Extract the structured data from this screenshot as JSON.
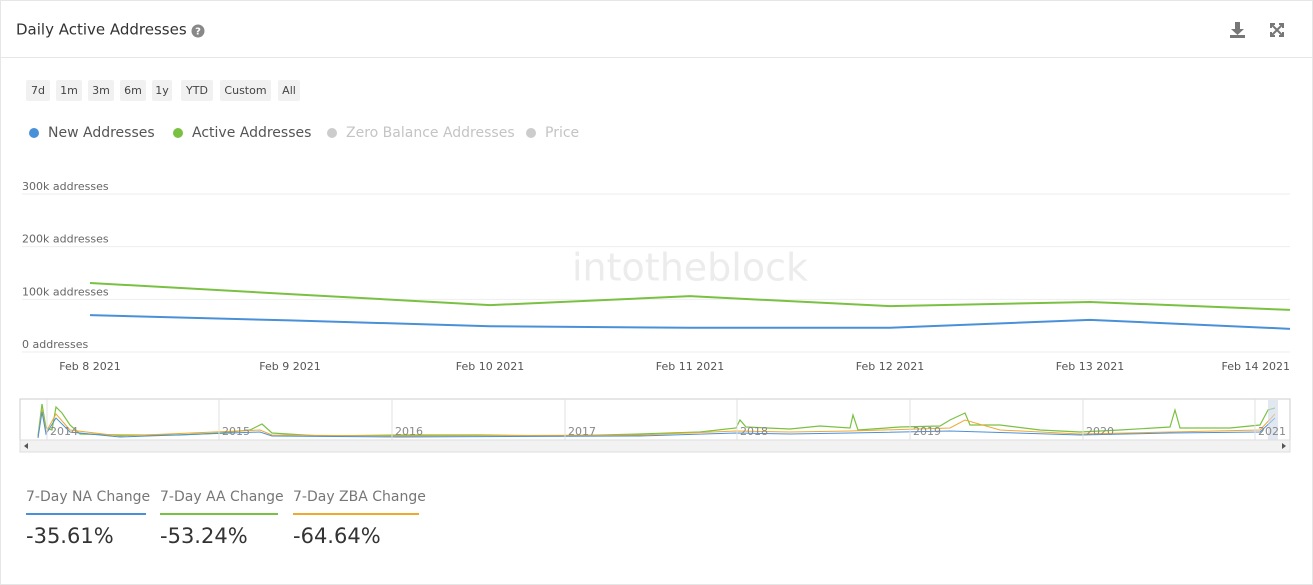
{
  "header": {
    "title": "Daily Active Addresses"
  },
  "range_buttons": [
    "7d",
    "1m",
    "3m",
    "6m",
    "1y",
    "YTD",
    "Custom",
    "All"
  ],
  "legend": [
    {
      "name": "New Addresses",
      "color": "#4a90d9",
      "visible": true
    },
    {
      "name": "Active Addresses",
      "color": "#7ac143",
      "visible": true
    },
    {
      "name": "Zero Balance Addresses",
      "color": "#f0a830",
      "visible": false
    },
    {
      "name": "Price",
      "color": "#888888",
      "visible": false
    }
  ],
  "chart_data": {
    "type": "line",
    "watermark": "intotheblock",
    "x": [
      "Feb 8 2021",
      "Feb 9 2021",
      "Feb 10 2021",
      "Feb 11 2021",
      "Feb 12 2021",
      "Feb 13 2021",
      "Feb 14 2021"
    ],
    "ylim": [
      0,
      300000
    ],
    "yticks": [
      {
        "value": 0,
        "label": "0 addresses"
      },
      {
        "value": 100000,
        "label": "100k addresses"
      },
      {
        "value": 200000,
        "label": "200k addresses"
      },
      {
        "value": 300000,
        "label": "300k addresses"
      }
    ],
    "grid": true,
    "series": [
      {
        "name": "New Addresses",
        "color": "#4a90d9",
        "values": [
          70000,
          60000,
          49000,
          46000,
          46000,
          61000,
          44000
        ]
      },
      {
        "name": "Active Addresses",
        "color": "#7ac143",
        "values": [
          131000,
          110000,
          89000,
          106000,
          87000,
          95000,
          80000
        ]
      }
    ]
  },
  "navigator": {
    "labels": [
      "2014",
      "2015",
      "2016",
      "2017",
      "2018",
      "2019",
      "2020",
      "2021"
    ]
  },
  "stats": [
    {
      "label": "7-Day NA Change",
      "value": "-35.61%",
      "color": "#4a90d9"
    },
    {
      "label": "7-Day AA Change",
      "value": "-53.24%",
      "color": "#7ac143"
    },
    {
      "label": "7-Day ZBA Change",
      "value": "-64.64%",
      "color": "#f0a830"
    }
  ]
}
